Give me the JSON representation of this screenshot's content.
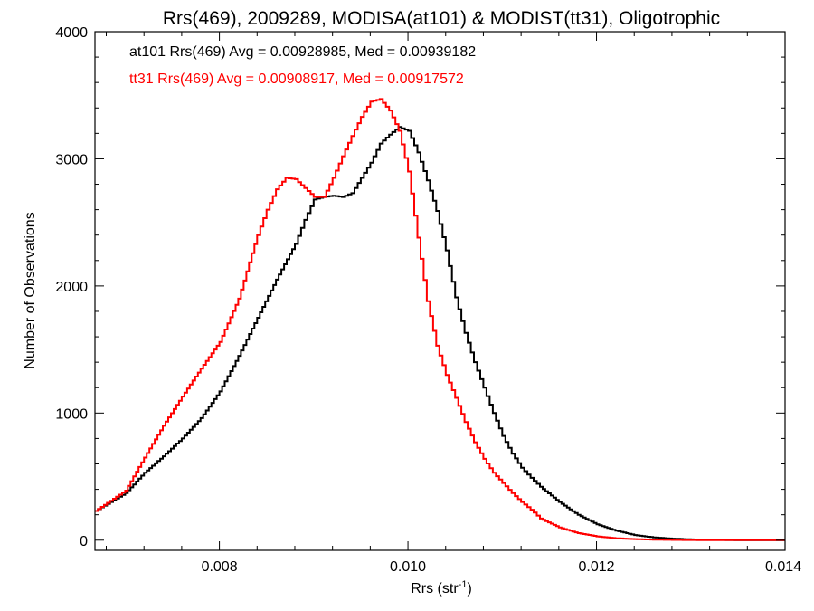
{
  "chart_data": {
    "type": "line",
    "title": "Rrs(469), 2009289, MODISA(at101) & MODIST(tt31), Oligotrophic",
    "xlabel_main": "Rrs (str",
    "xlabel_sup": "-1",
    "xlabel_close": ")",
    "ylabel": "Number of Observations",
    "xlim": [
      0.00668,
      0.014
    ],
    "ylim": [
      -80,
      4000
    ],
    "x_ticks": [
      {
        "value": 0.008,
        "label": "0.008"
      },
      {
        "value": 0.01,
        "label": "0.010"
      },
      {
        "value": 0.012,
        "label": "0.012"
      },
      {
        "value": 0.014,
        "label": "0.014"
      }
    ],
    "y_ticks": [
      {
        "value": 0,
        "label": "0"
      },
      {
        "value": 1000,
        "label": "1000"
      },
      {
        "value": 2000,
        "label": "2000"
      },
      {
        "value": 3000,
        "label": "3000"
      },
      {
        "value": 4000,
        "label": "4000"
      }
    ],
    "grid": false,
    "legend_position": "top-left",
    "annotations": [
      {
        "text": "at101 Rrs(469) Avg = 0.00928985, Med = 0.00939182",
        "color": "#000000"
      },
      {
        "text": "tt31 Rrs(469) Avg = 0.00908917, Med = 0.00917572",
        "color": "#ff0000"
      }
    ],
    "series": [
      {
        "color": "#000000",
        "x": [
          0.00668,
          0.007,
          0.0072,
          0.0074,
          0.0076,
          0.0078,
          0.008,
          0.0082,
          0.0084,
          0.0086,
          0.0088,
          0.0089,
          0.009,
          0.0091,
          0.0092,
          0.0093,
          0.0094,
          0.0095,
          0.0096,
          0.0097,
          0.0098,
          0.0099,
          0.01,
          0.0101,
          0.0102,
          0.0103,
          0.0104,
          0.0105,
          0.0106,
          0.0107,
          0.0108,
          0.0109,
          0.011,
          0.0111,
          0.0112,
          0.0113,
          0.0114,
          0.0116,
          0.0118,
          0.012,
          0.0122,
          0.0124,
          0.0126,
          0.0128,
          0.013,
          0.0132,
          0.0134,
          0.0136,
          0.0138,
          0.014
        ],
        "y": [
          230,
          370,
          530,
          660,
          800,
          960,
          1170,
          1450,
          1750,
          2050,
          2330,
          2520,
          2680,
          2700,
          2710,
          2700,
          2730,
          2850,
          2970,
          3120,
          3190,
          3250,
          3220,
          3050,
          2830,
          2590,
          2280,
          1910,
          1630,
          1400,
          1200,
          1000,
          820,
          680,
          570,
          490,
          420,
          300,
          200,
          125,
          75,
          40,
          22,
          12,
          6,
          3,
          1,
          0,
          0,
          0
        ]
      },
      {
        "color": "#ff0000",
        "x": [
          0.00668,
          0.007,
          0.0072,
          0.0074,
          0.0076,
          0.0078,
          0.008,
          0.0082,
          0.0084,
          0.0085,
          0.0086,
          0.0087,
          0.0088,
          0.0089,
          0.009,
          0.0091,
          0.0092,
          0.0093,
          0.0094,
          0.0095,
          0.0096,
          0.0097,
          0.0098,
          0.0099,
          0.01,
          0.0101,
          0.0102,
          0.0103,
          0.0104,
          0.0105,
          0.0106,
          0.0107,
          0.0108,
          0.0109,
          0.011,
          0.0111,
          0.0112,
          0.0113,
          0.0114,
          0.0116,
          0.0118,
          0.012,
          0.0122,
          0.0124,
          0.0126,
          0.0128,
          0.013,
          0.0132,
          0.0134,
          0.0136,
          0.0138,
          0.014
        ],
        "y": [
          230,
          390,
          650,
          900,
          1130,
          1350,
          1560,
          1900,
          2400,
          2600,
          2760,
          2850,
          2840,
          2770,
          2700,
          2700,
          2850,
          3020,
          3180,
          3330,
          3450,
          3470,
          3380,
          3220,
          2900,
          2380,
          1880,
          1530,
          1300,
          1120,
          930,
          770,
          640,
          530,
          450,
          370,
          300,
          240,
          170,
          100,
          55,
          30,
          15,
          8,
          4,
          2,
          1,
          0,
          0,
          0,
          0,
          0
        ]
      }
    ]
  }
}
